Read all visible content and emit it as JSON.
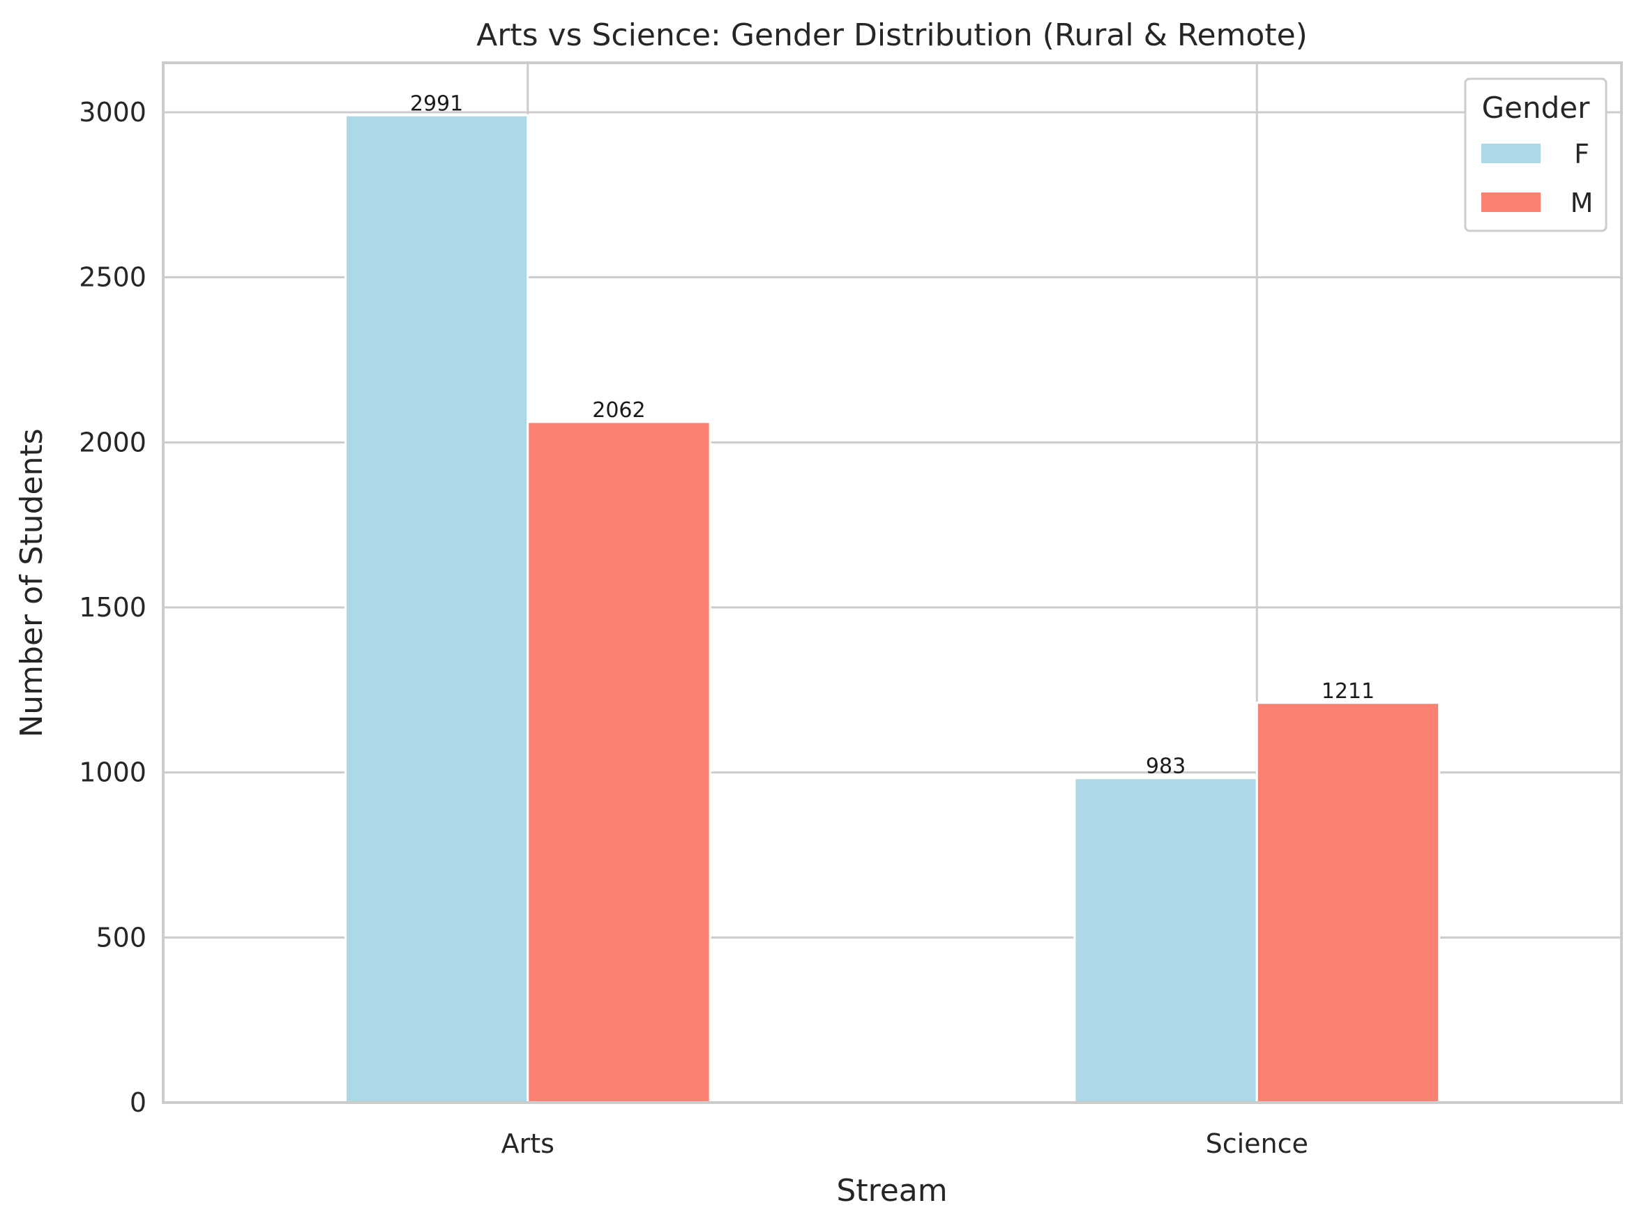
{
  "chart_data": {
    "type": "bar",
    "title": "Arts vs Science: Gender Distribution (Rural & Remote)",
    "xlabel": "Stream",
    "ylabel": "Number of Students",
    "categories": [
      "Arts",
      "Science"
    ],
    "series": [
      {
        "name": "F",
        "values": [
          2991,
          983
        ],
        "color": "#add8e6"
      },
      {
        "name": "M",
        "values": [
          2062,
          1211
        ],
        "color": "#fa8072"
      }
    ],
    "data_labels": [
      [
        "2991",
        "983"
      ],
      [
        "2062",
        "1211"
      ]
    ],
    "ylim": [
      0,
      3150
    ],
    "yticks": [
      0,
      500,
      1000,
      1500,
      2000,
      2500,
      3000
    ],
    "ytick_labels": [
      "0",
      "500",
      "1000",
      "1500",
      "2000",
      "2500",
      "3000"
    ],
    "grid": true,
    "legend": {
      "title": "Gender",
      "position": "top-right",
      "entries": [
        "F",
        "M"
      ]
    },
    "colors": {
      "grid": "#cccccc",
      "spine": "#cccccc",
      "text": "#262626"
    }
  }
}
